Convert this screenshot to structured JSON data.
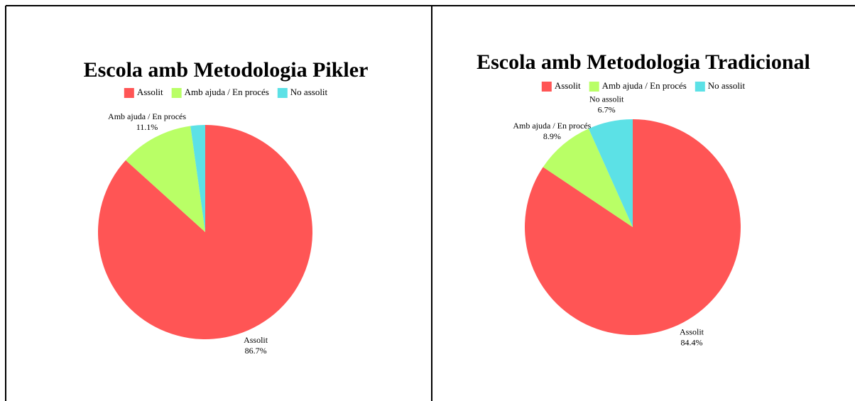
{
  "chart_data": [
    {
      "type": "pie",
      "title": "Escola amb Metodologia Pikler",
      "categories": [
        "Assolit",
        "Amb ajuda / En procés",
        "No assolit"
      ],
      "values": [
        86.7,
        11.1,
        2.2
      ],
      "value_labels": [
        "86.7%",
        "11.1%",
        null
      ],
      "colors": [
        "#ff5555",
        "#b9ff66",
        "#5ce1e6"
      ]
    },
    {
      "type": "pie",
      "title": "Escola amb Metodologia Tradicional",
      "categories": [
        "Assolit",
        "Amb ajuda / En procés",
        "No assolit"
      ],
      "values": [
        84.4,
        8.9,
        6.7
      ],
      "value_labels": [
        "84.4%",
        "8.9%",
        "6.7%"
      ],
      "colors": [
        "#ff5555",
        "#b9ff66",
        "#5ce1e6"
      ]
    }
  ]
}
